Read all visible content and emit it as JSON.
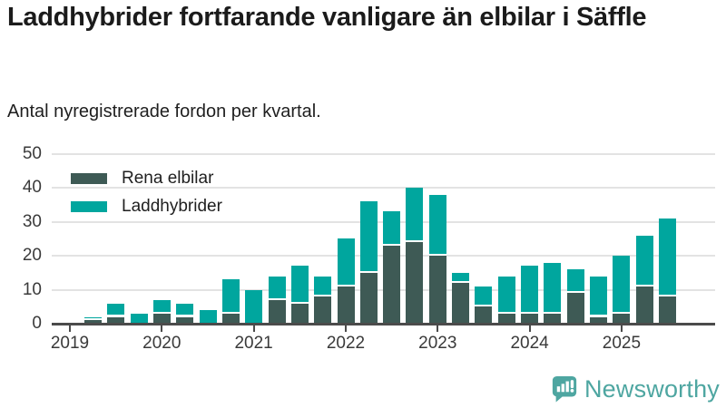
{
  "header": {
    "title": "Laddhybrider fortfarande vanligare än elbilar i Säffle",
    "subtitle": "Antal nyregistrerade fordon per kvartal."
  },
  "legend": [
    {
      "label": "Rena elbilar",
      "color": "#3e5a55"
    },
    {
      "label": "Laddhybrider",
      "color": "#00a69e"
    }
  ],
  "chart_data": {
    "type": "bar",
    "stacked": true,
    "title": "Laddhybrider fortfarande vanligare än elbilar i Säffle",
    "subtitle": "Antal nyregistrerade fordon per kvartal.",
    "categories": [
      "2019 Q1",
      "2019 Q2",
      "2019 Q3",
      "2019 Q4",
      "2020 Q1",
      "2020 Q2",
      "2020 Q3",
      "2020 Q4",
      "2021 Q1",
      "2021 Q2",
      "2021 Q3",
      "2021 Q4",
      "2022 Q1",
      "2022 Q2",
      "2022 Q3",
      "2022 Q4",
      "2023 Q1",
      "2023 Q2",
      "2023 Q3",
      "2023 Q4",
      "2024 Q1",
      "2024 Q2",
      "2024 Q3",
      "2024 Q4",
      "2025 Q1",
      "2025 Q2",
      "2025 Q3"
    ],
    "series": [
      {
        "name": "Rena elbilar",
        "color": "#3e5a55",
        "values": [
          0,
          1,
          2,
          0,
          3,
          2,
          0,
          3,
          0,
          7,
          6,
          8,
          11,
          15,
          23,
          24,
          20,
          12,
          5,
          3,
          3,
          3,
          9,
          2,
          3,
          11,
          8
        ]
      },
      {
        "name": "Laddhybrider",
        "color": "#00a69e",
        "values": [
          0,
          1,
          4,
          3,
          4,
          4,
          4,
          10,
          10,
          7,
          11,
          6,
          14,
          21,
          10,
          16,
          18,
          3,
          6,
          11,
          14,
          15,
          7,
          12,
          17,
          15,
          23
        ]
      }
    ],
    "x_tick_labels": [
      "2019",
      "2020",
      "2021",
      "2022",
      "2023",
      "2024",
      "2025"
    ],
    "y_ticks": [
      0,
      10,
      20,
      30,
      40,
      50
    ],
    "ylim": [
      0,
      50
    ],
    "grid": true,
    "legend_position": "top-left"
  },
  "footer": {
    "brand": "Newsworthy",
    "brand_color": "#4ea6a1"
  },
  "colors": {
    "background": "#ffffff",
    "title_text": "#1b1b1b",
    "axis_line": "#4b4b4b",
    "gridline": "#e3e3e3",
    "tick_text": "#3a3a3a"
  }
}
